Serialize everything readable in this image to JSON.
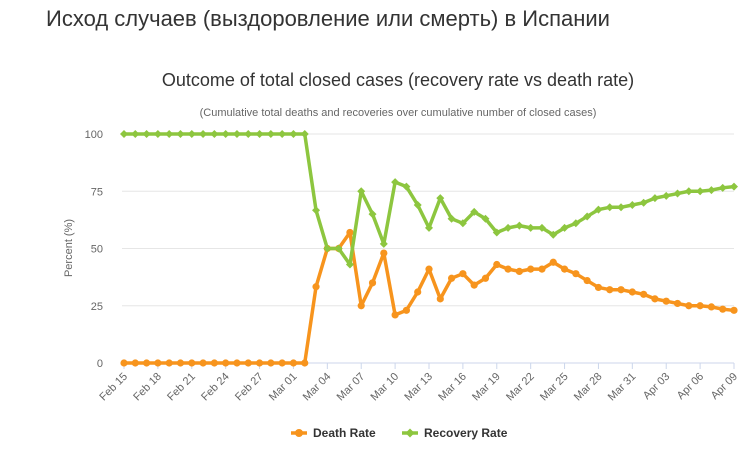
{
  "page": {
    "title": "Исход случаев (выздоровление или смерть) в Испании"
  },
  "chart_data": {
    "type": "line",
    "title": "Outcome of total closed cases (recovery rate vs death rate)",
    "subtitle": "(Cumulative total deaths and recoveries over cumulative number of closed cases)",
    "xlabel": "",
    "ylabel": "Percent (%)",
    "ylim": [
      0,
      100
    ],
    "yticks": [
      0,
      25,
      50,
      75,
      100
    ],
    "grid": "horizontal",
    "legend_position": "bottom",
    "x": [
      "Feb 15",
      "Feb 16",
      "Feb 17",
      "Feb 18",
      "Feb 19",
      "Feb 20",
      "Feb 21",
      "Feb 22",
      "Feb 23",
      "Feb 24",
      "Feb 25",
      "Feb 26",
      "Feb 27",
      "Feb 28",
      "Feb 29",
      "Mar 01",
      "Mar 02",
      "Mar 03",
      "Mar 04",
      "Mar 05",
      "Mar 06",
      "Mar 07",
      "Mar 08",
      "Mar 09",
      "Mar 10",
      "Mar 11",
      "Mar 12",
      "Mar 13",
      "Mar 14",
      "Mar 15",
      "Mar 16",
      "Mar 17",
      "Mar 18",
      "Mar 19",
      "Mar 20",
      "Mar 21",
      "Mar 22",
      "Mar 23",
      "Mar 24",
      "Mar 25",
      "Mar 26",
      "Mar 27",
      "Mar 28",
      "Mar 29",
      "Mar 30",
      "Mar 31",
      "Apr 01",
      "Apr 02",
      "Apr 03",
      "Apr 04",
      "Apr 05",
      "Apr 06",
      "Apr 07",
      "Apr 08",
      "Apr 09"
    ],
    "xtick_labels": [
      "Feb 15",
      "Feb 18",
      "Feb 21",
      "Feb 24",
      "Feb 27",
      "Mar 01",
      "Mar 04",
      "Mar 07",
      "Mar 10",
      "Mar 13",
      "Mar 16",
      "Mar 19",
      "Mar 22",
      "Mar 25",
      "Mar 28",
      "Mar 31",
      "Apr 03",
      "Apr 06",
      "Apr 09"
    ],
    "series": [
      {
        "name": "Death Rate",
        "color": "#f7941d",
        "values": [
          0,
          0,
          0,
          0,
          0,
          0,
          0,
          0,
          0,
          0,
          0,
          0,
          0,
          0,
          0,
          0,
          0,
          33.3,
          50,
          50,
          57,
          25,
          35,
          48,
          21,
          23,
          31,
          41,
          28,
          37,
          39,
          34,
          37,
          43,
          41,
          40,
          41,
          41,
          44,
          41,
          39,
          36,
          33,
          32,
          32,
          31,
          30,
          28,
          27,
          26,
          25,
          25,
          24.5,
          23.5,
          23
        ]
      },
      {
        "name": "Recovery Rate",
        "color": "#8dc63f",
        "values": [
          100,
          100,
          100,
          100,
          100,
          100,
          100,
          100,
          100,
          100,
          100,
          100,
          100,
          100,
          100,
          100,
          100,
          66.7,
          50,
          50,
          43,
          75,
          65,
          52,
          79,
          77,
          69,
          59,
          72,
          63,
          61,
          66,
          63,
          57,
          59,
          60,
          59,
          59,
          56,
          59,
          61,
          64,
          67,
          68,
          68,
          69,
          70,
          72,
          73,
          74,
          75,
          75,
          75.5,
          76.5,
          77
        ]
      }
    ]
  }
}
